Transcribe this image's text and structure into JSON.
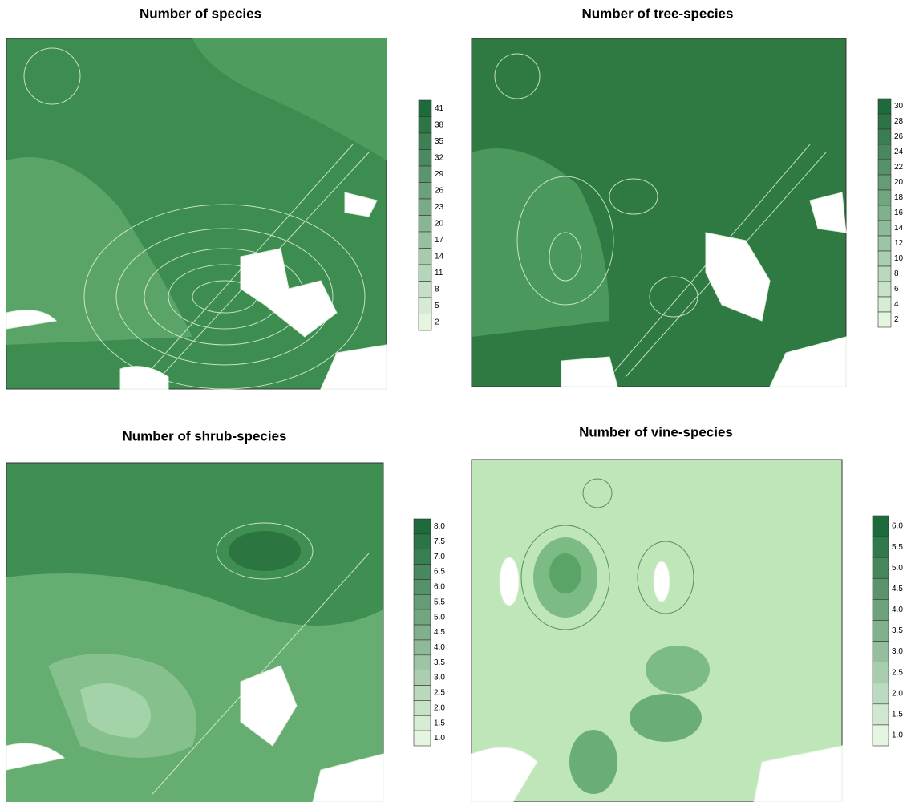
{
  "chart_data": [
    {
      "type": "contour",
      "title": "Number of species",
      "colors": [
        "#e4f6e0",
        "#1d6a3a"
      ],
      "levels": [
        41,
        38,
        35,
        32,
        29,
        26,
        23,
        20,
        17,
        14,
        11,
        8,
        5,
        2
      ]
    },
    {
      "type": "contour",
      "title": "Number of tree-species",
      "colors": [
        "#e4f6e0",
        "#1d6a3a"
      ],
      "levels": [
        30,
        28,
        26,
        24,
        22,
        20,
        18,
        16,
        14,
        12,
        10,
        8,
        6,
        4,
        2
      ]
    },
    {
      "type": "contour",
      "title": "Number of shrub-species",
      "colors": [
        "#e4f6e0",
        "#1d6a3a"
      ],
      "levels": [
        {
          "value": 8,
          "label": "8.0"
        },
        7.5,
        {
          "value": 7,
          "label": "7.0"
        },
        6.5,
        {
          "value": 6,
          "label": "6.0"
        },
        5.5,
        {
          "value": 5,
          "label": "5.0"
        },
        4.5,
        {
          "value": 4,
          "label": "4.0"
        },
        3.5,
        {
          "value": 3,
          "label": "3.0"
        },
        2.5,
        {
          "value": 2,
          "label": "2.0"
        },
        1.5,
        {
          "value": 1,
          "label": "1.0"
        }
      ]
    },
    {
      "type": "contour",
      "title": "Number of vine-species",
      "colors": [
        "#e4f6e0",
        "#1d6a3a"
      ],
      "levels": [
        {
          "value": 6,
          "label": "6.0"
        },
        5.5,
        {
          "value": 5,
          "label": "5.0"
        },
        4.5,
        {
          "value": 4,
          "label": "4.0"
        },
        3.5,
        {
          "value": 3,
          "label": "3.0"
        },
        2.5,
        {
          "value": 2,
          "label": "2.0"
        },
        1.5,
        {
          "value": 1,
          "label": "1.0"
        }
      ]
    }
  ]
}
